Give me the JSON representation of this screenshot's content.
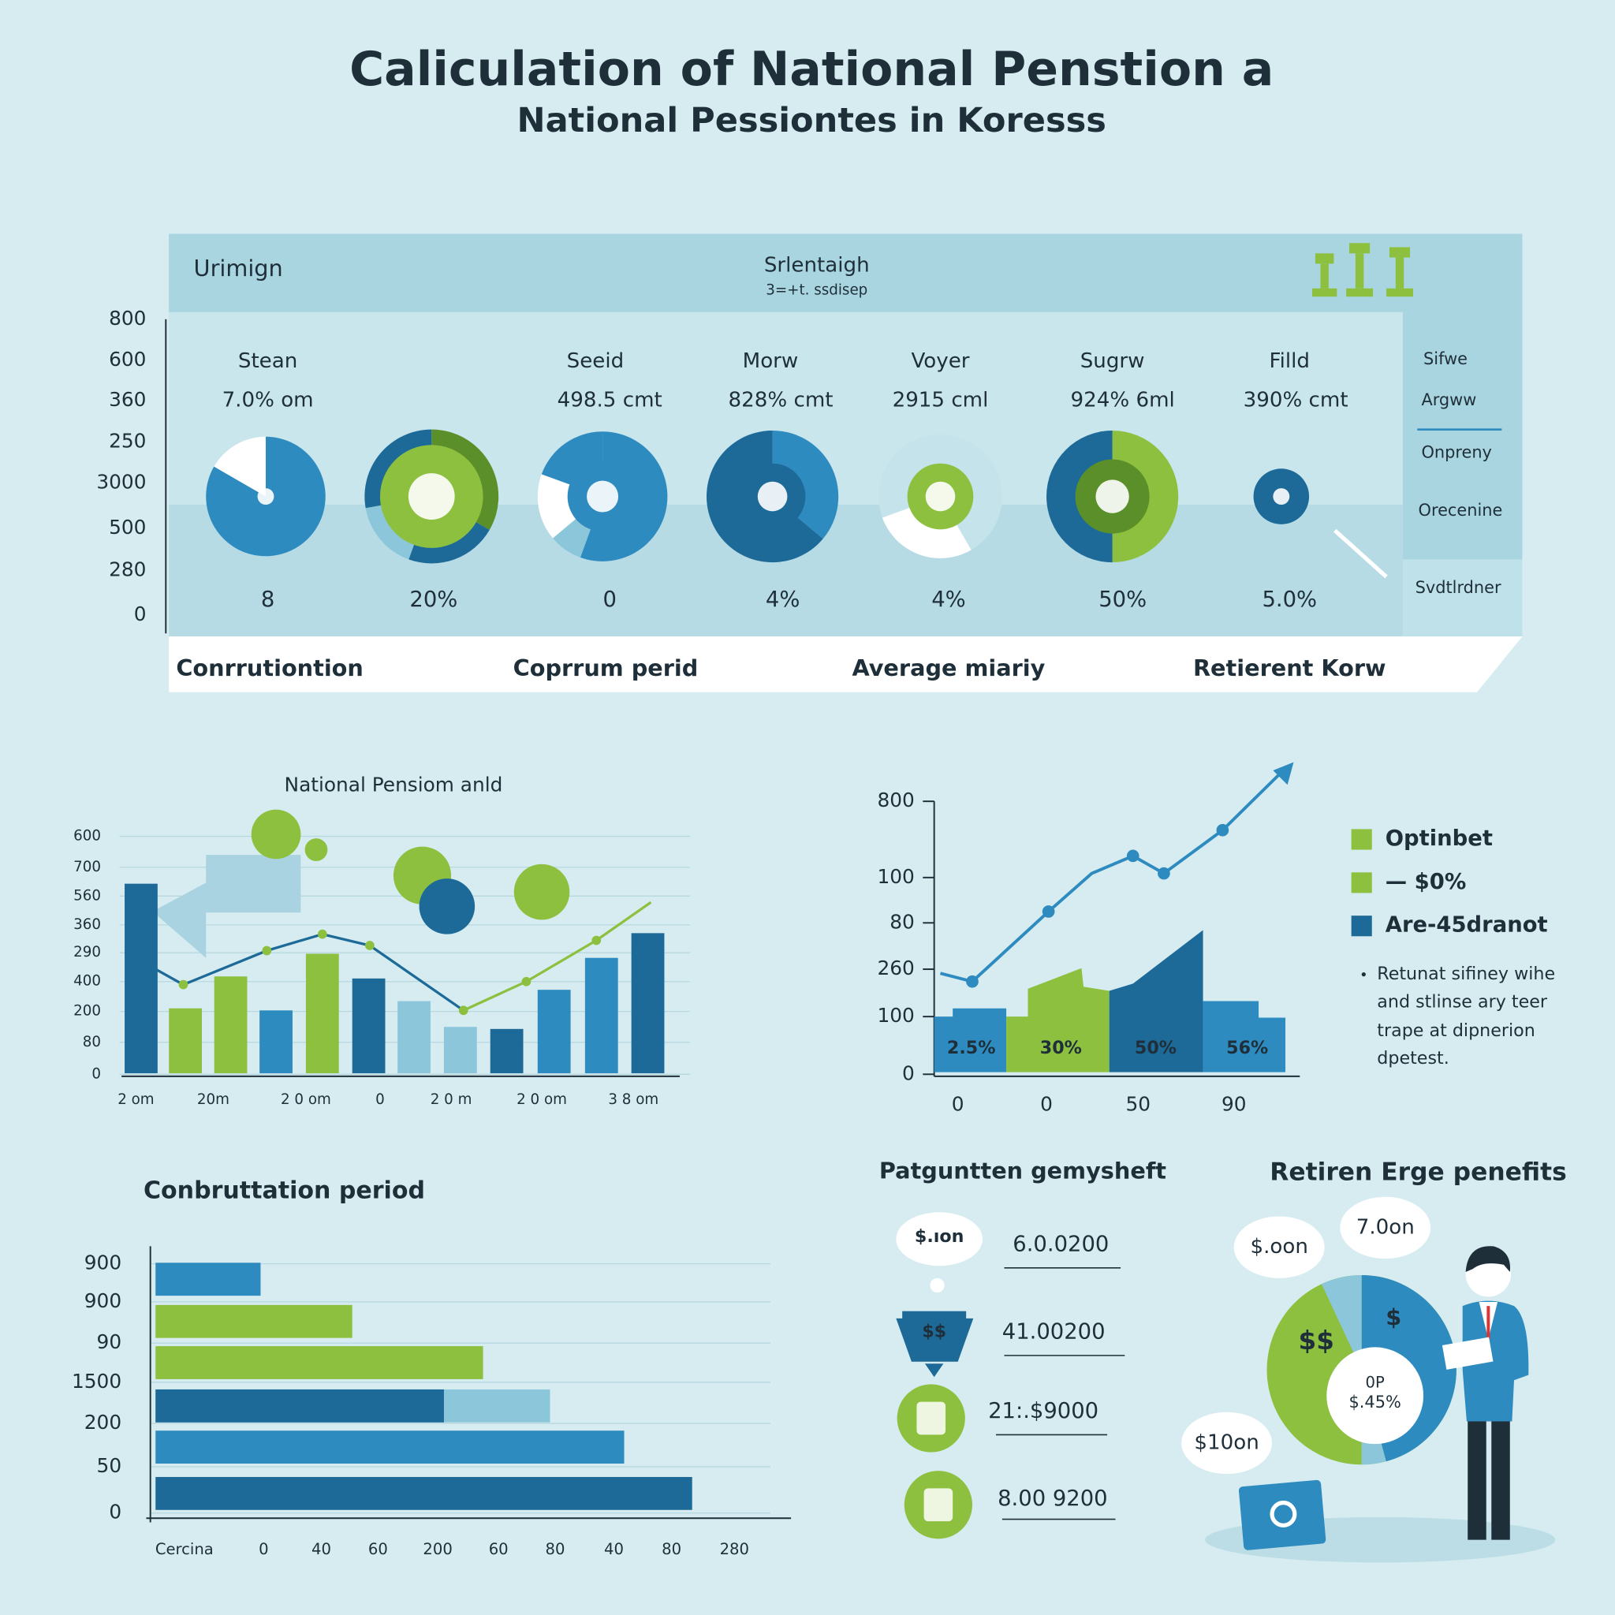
{
  "title": "Caliculation of National Penstion a",
  "subtitle": "National Pessiontes in Koresss",
  "top_panel": {
    "header_left": "Urimign",
    "header_center": "Srlentaigh",
    "header_center_sub": "3=+t. ssdisep",
    "y_labels": [
      "800",
      "600",
      "360",
      "250",
      "3000",
      "500",
      "280",
      "0"
    ],
    "names": [
      "Stean",
      "Seeid",
      "Morw",
      "Voyer",
      "Sugrw",
      "Filld"
    ],
    "amounts": [
      "7.0% om",
      "498.5 cmt",
      "828% cmt",
      "2915 cml",
      "924% 6ml",
      "390% cmt"
    ],
    "percents": [
      "8",
      "20%",
      "0",
      "4%",
      "4%",
      "50%",
      "5.0%"
    ],
    "legend": [
      "Sifwe",
      "Argww",
      "Onpreny",
      "Orecenine",
      "Svdtlrdner"
    ],
    "footer": [
      "Conrrutiontion",
      "Coprrum perid",
      "Average miariy",
      "Retierent Korw"
    ]
  },
  "pension_chart": {
    "title": "National Pensiom anld",
    "y_labels": [
      "600",
      "700",
      "560",
      "360",
      "290",
      "400",
      "200",
      "80",
      "0"
    ],
    "x_labels": [
      "2 om",
      "20m",
      "2 0 om",
      "0",
      "2 0 m",
      "2 0 om",
      "3 8 om"
    ]
  },
  "growth_chart": {
    "y_labels": [
      "800",
      "100",
      "80",
      "260",
      "100",
      "0"
    ],
    "x_labels": [
      "0",
      "0",
      "50",
      "90"
    ],
    "bar_labels": [
      "2.5%",
      "30%",
      "50%",
      "56%"
    ],
    "legend": [
      "Optinbet",
      "— $0%",
      "Are-45dranot"
    ],
    "note": [
      "Retunat sifiney wihe",
      "and stlinse ary teer",
      "trape at dipnerion",
      "dpetest."
    ]
  },
  "period_chart": {
    "title": "Conbruttation period",
    "y_labels": [
      "900",
      "900",
      "90",
      "1500",
      "200",
      "50",
      "0"
    ],
    "x_labels": [
      "Cercina",
      "0",
      "40",
      "60",
      "200",
      "60",
      "80",
      "40",
      "80",
      "280"
    ]
  },
  "payments": {
    "title": "Patguntten gemysheft",
    "icon_labels": [
      "$.ıon",
      "$$"
    ],
    "amounts": [
      "6.0.0200",
      "41.00200",
      "21:.$9000",
      "8.00 9200"
    ]
  },
  "benefits": {
    "title": "Retiren Erge penefits",
    "bubbles": [
      "$.oon",
      "7.0on",
      "$10on"
    ],
    "pie_labels": [
      "0P",
      "$.45%"
    ],
    "icons": [
      "$$",
      "$"
    ]
  }
}
